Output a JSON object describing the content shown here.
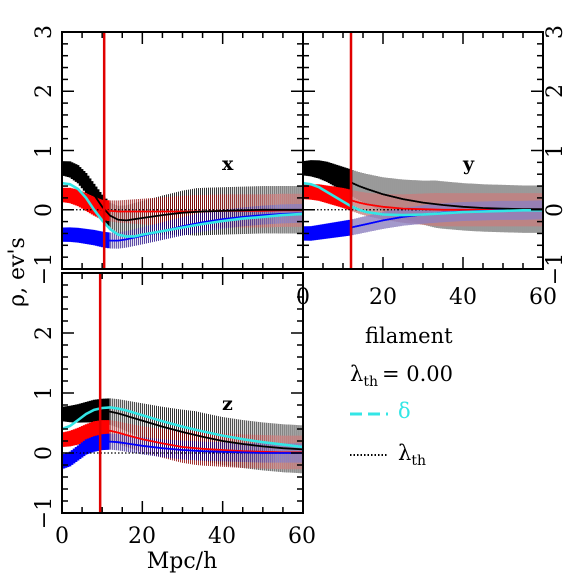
{
  "chart_data": {
    "type": "line",
    "xlabel": "Mpc/h",
    "ylabel": "ρ, ev's",
    "xlim": [
      0,
      60
    ],
    "ylim": [
      -1,
      3
    ],
    "x_ticks": [
      "0",
      "20",
      "40",
      "60"
    ],
    "y_ticks": [
      "−1",
      "0",
      "1",
      "2",
      "3"
    ],
    "legend": {
      "title": "filament",
      "threshold_label": "λ",
      "threshold_sub": "th",
      "threshold_value": "=  0.00",
      "entries": [
        {
          "label": "δ",
          "color": "#33e6e6",
          "style": "dashed"
        },
        {
          "label": "λ",
          "sub": "th",
          "color": "#000000",
          "style": "dotted"
        }
      ]
    },
    "panels": [
      {
        "name": "x",
        "vline": 10.5,
        "series": [
          {
            "role": "black",
            "color": "#000000",
            "x": [
              0,
              2,
              4,
              6,
              8,
              10,
              12,
              14,
              16,
              20,
              25,
              30,
              35,
              40,
              45,
              50,
              55,
              60
            ],
            "y": [
              0.7,
              0.68,
              0.6,
              0.45,
              0.25,
              0.05,
              -0.1,
              -0.17,
              -0.18,
              -0.14,
              -0.09,
              -0.05,
              -0.03,
              -0.02,
              -0.01,
              0,
              0,
              0
            ]
          },
          {
            "role": "cyan",
            "color": "#33e6e6",
            "x": [
              0,
              2,
              4,
              6,
              8,
              10,
              12,
              14,
              16,
              18,
              20,
              25,
              30,
              35,
              40,
              45,
              50,
              55,
              60
            ],
            "y": [
              0.45,
              0.43,
              0.35,
              0.2,
              0.0,
              -0.18,
              -0.33,
              -0.42,
              -0.45,
              -0.45,
              -0.42,
              -0.36,
              -0.3,
              -0.24,
              -0.19,
              -0.15,
              -0.12,
              -0.09,
              -0.07
            ]
          },
          {
            "role": "red",
            "color": "#ff0000",
            "x": [
              0,
              2,
              4,
              6,
              8,
              10,
              12,
              14,
              16,
              20,
              25,
              30,
              35,
              40,
              45,
              50,
              55,
              60
            ],
            "y": [
              0.25,
              0.24,
              0.2,
              0.13,
              0.06,
              0.0,
              -0.02,
              -0.03,
              -0.03,
              -0.03,
              -0.03,
              -0.03,
              -0.03,
              -0.02,
              -0.02,
              -0.02,
              -0.01,
              -0.01
            ]
          },
          {
            "role": "blue",
            "color": "#0000ff",
            "x": [
              0,
              2,
              4,
              6,
              8,
              10,
              12,
              14,
              16,
              20,
              25,
              30,
              35,
              40,
              45,
              50,
              55,
              60
            ],
            "y": [
              -0.42,
              -0.42,
              -0.43,
              -0.45,
              -0.47,
              -0.5,
              -0.52,
              -0.52,
              -0.5,
              -0.44,
              -0.36,
              -0.28,
              -0.21,
              -0.16,
              -0.12,
              -0.09,
              -0.07,
              -0.06
            ]
          }
        ]
      },
      {
        "name": "y",
        "vline": 12,
        "series": [
          {
            "role": "black",
            "color": "#000000",
            "x": [
              0,
              2,
              4,
              6,
              8,
              10,
              12,
              14,
              16,
              20,
              25,
              30,
              35,
              40,
              45,
              50,
              55,
              60
            ],
            "y": [
              0.7,
              0.7,
              0.68,
              0.64,
              0.58,
              0.52,
              0.46,
              0.4,
              0.35,
              0.26,
              0.18,
              0.12,
              0.08,
              0.05,
              0.03,
              0.02,
              0.01,
              0.01
            ]
          },
          {
            "role": "cyan",
            "color": "#33e6e6",
            "x": [
              0,
              2,
              4,
              6,
              8,
              10,
              12,
              14,
              16,
              20,
              25,
              30,
              35,
              40,
              45,
              50,
              55,
              60
            ],
            "y": [
              0.45,
              0.43,
              0.38,
              0.3,
              0.22,
              0.14,
              0.06,
              0.0,
              -0.04,
              -0.08,
              -0.09,
              -0.08,
              -0.06,
              -0.04,
              -0.03,
              -0.02,
              -0.01,
              -0.01
            ]
          },
          {
            "role": "red",
            "color": "#ff0000",
            "x": [
              0,
              2,
              4,
              6,
              8,
              10,
              12,
              14,
              16,
              20,
              25,
              30,
              35,
              40,
              45,
              50,
              55,
              60
            ],
            "y": [
              0.3,
              0.3,
              0.29,
              0.26,
              0.23,
              0.2,
              0.16,
              0.12,
              0.09,
              0.05,
              0.02,
              0.01,
              0.0,
              0.0,
              0.0,
              0.0,
              0.0,
              0.0
            ]
          },
          {
            "role": "blue",
            "color": "#0000ff",
            "x": [
              0,
              2,
              4,
              6,
              8,
              10,
              12,
              14,
              16,
              20,
              25,
              30,
              35,
              40,
              45,
              50,
              55,
              60
            ],
            "y": [
              -0.4,
              -0.4,
              -0.38,
              -0.36,
              -0.34,
              -0.32,
              -0.3,
              -0.27,
              -0.24,
              -0.18,
              -0.12,
              -0.08,
              -0.05,
              -0.03,
              -0.02,
              -0.01,
              -0.01,
              0.0
            ]
          }
        ]
      },
      {
        "name": "z",
        "vline": 9.5,
        "series": [
          {
            "role": "black",
            "color": "#000000",
            "x": [
              0,
              2,
              4,
              6,
              8,
              10,
              12,
              14,
              16,
              20,
              25,
              30,
              35,
              40,
              45,
              50,
              55,
              60
            ],
            "y": [
              0.65,
              0.65,
              0.66,
              0.68,
              0.7,
              0.7,
              0.69,
              0.66,
              0.62,
              0.54,
              0.44,
              0.35,
              0.27,
              0.2,
              0.15,
              0.11,
              0.08,
              0.06
            ]
          },
          {
            "role": "cyan",
            "color": "#33e6e6",
            "x": [
              0,
              2,
              4,
              6,
              8,
              10,
              12,
              14,
              16,
              20,
              25,
              30,
              35,
              40,
              45,
              50,
              55,
              60
            ],
            "y": [
              0.4,
              0.45,
              0.55,
              0.65,
              0.72,
              0.75,
              0.76,
              0.74,
              0.71,
              0.63,
              0.53,
              0.44,
              0.36,
              0.29,
              0.23,
              0.18,
              0.14,
              0.1
            ]
          },
          {
            "role": "red",
            "color": "#ff0000",
            "x": [
              0,
              2,
              4,
              6,
              8,
              10,
              12,
              14,
              16,
              20,
              25,
              30,
              35,
              40,
              45,
              50,
              55,
              60
            ],
            "y": [
              0.22,
              0.24,
              0.28,
              0.33,
              0.37,
              0.38,
              0.37,
              0.34,
              0.3,
              0.23,
              0.16,
              0.1,
              0.07,
              0.05,
              0.03,
              0.02,
              0.01,
              0.01
            ]
          },
          {
            "role": "blue",
            "color": "#0000ff",
            "x": [
              0,
              2,
              4,
              6,
              8,
              10,
              12,
              14,
              16,
              20,
              25,
              30,
              35,
              40,
              45,
              50,
              55,
              60
            ],
            "y": [
              -0.15,
              -0.1,
              0.0,
              0.1,
              0.15,
              0.18,
              0.19,
              0.18,
              0.16,
              0.12,
              0.08,
              0.05,
              0.03,
              0.02,
              0.01,
              0.0,
              0.0,
              0.0
            ]
          }
        ]
      }
    ]
  }
}
